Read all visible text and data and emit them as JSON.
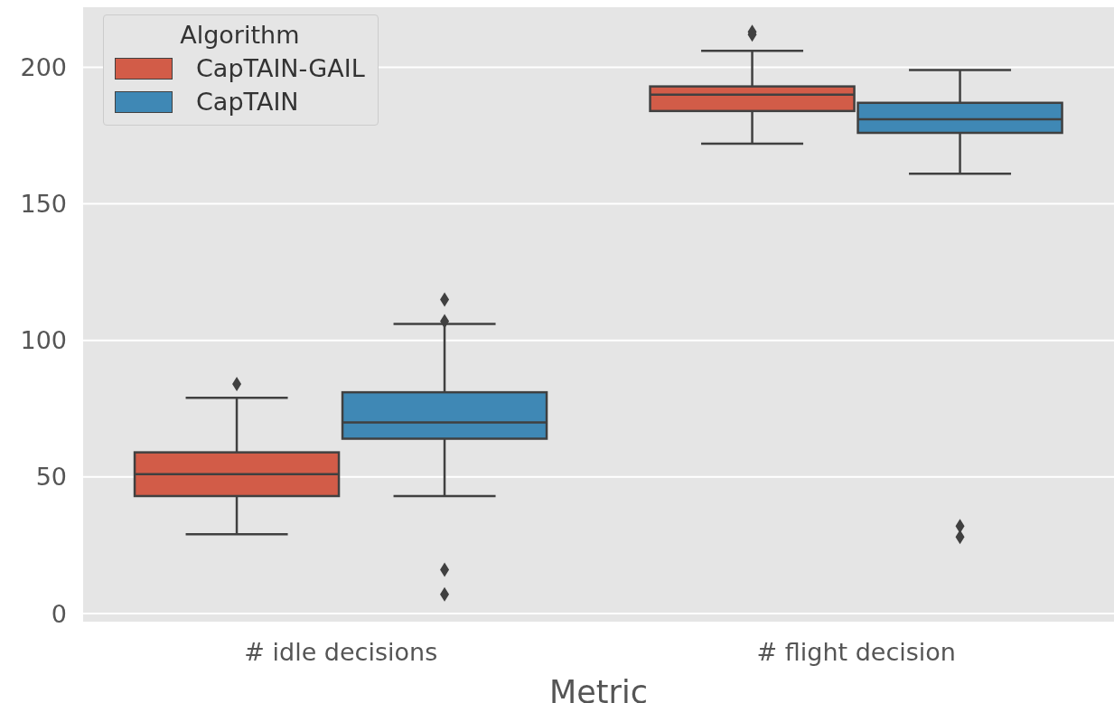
{
  "chart_data": {
    "type": "box",
    "xlabel": "Metric",
    "legend_title": "Algorithm",
    "categories": [
      "# idle decisions",
      "# flight decision"
    ],
    "series": [
      {
        "name": "CapTAIN-GAIL",
        "color": "#d25c48",
        "boxes": [
          {
            "low": 29,
            "q1": 43,
            "median": 51,
            "q3": 59,
            "high": 79,
            "outliers": [
              84
            ]
          },
          {
            "low": 172,
            "q1": 184,
            "median": 190,
            "q3": 193,
            "high": 206,
            "outliers": [
              212,
              213
            ]
          }
        ]
      },
      {
        "name": "CapTAIN",
        "color": "#3f88b5",
        "boxes": [
          {
            "low": 43,
            "q1": 64,
            "median": 70,
            "q3": 81,
            "high": 106,
            "outliers": [
              7,
              16,
              107,
              115
            ]
          },
          {
            "low": 161,
            "q1": 176,
            "median": 181,
            "q3": 187,
            "high": 199,
            "outliers": [
              28,
              32
            ]
          }
        ]
      }
    ],
    "ylim": [
      -3,
      222
    ],
    "yticks": [
      0,
      50,
      100,
      150,
      200
    ],
    "grid": "y",
    "legend": "top left"
  }
}
